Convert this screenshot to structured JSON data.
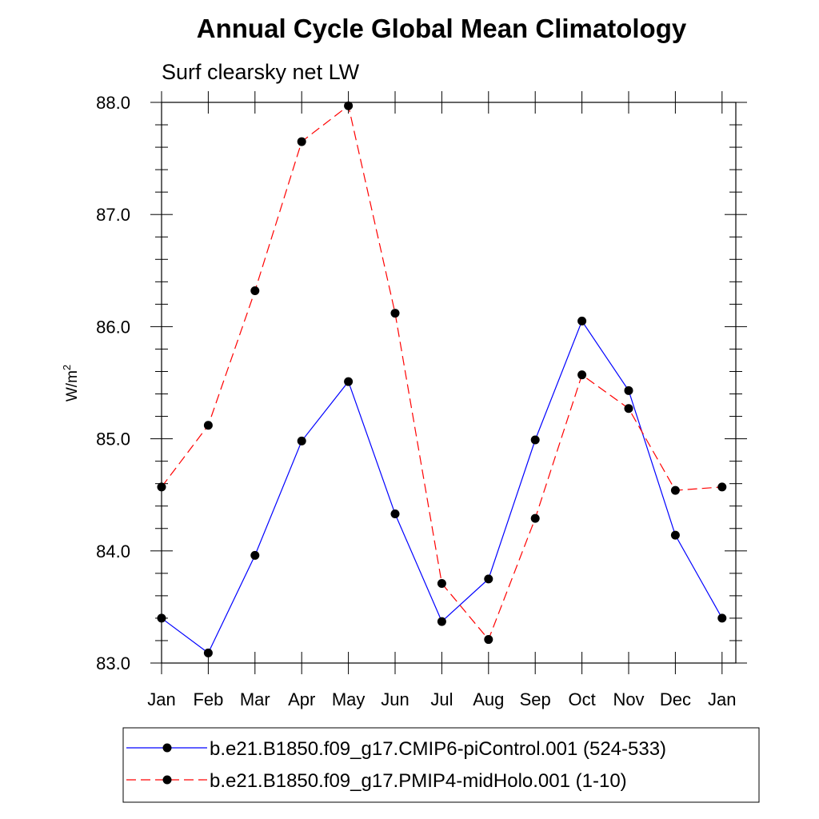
{
  "chart_data": {
    "type": "line",
    "title": "Annual Cycle Global Mean Climatology",
    "subtitle": "Surf clearsky net LW",
    "xlabel": "",
    "ylabel": "W/m",
    "ylabel_superscript": "2",
    "categories": [
      "Jan",
      "Feb",
      "Mar",
      "Apr",
      "May",
      "Jun",
      "Jul",
      "Aug",
      "Sep",
      "Oct",
      "Nov",
      "Dec",
      "Jan"
    ],
    "yticks": [
      "83.0",
      "84.0",
      "85.0",
      "86.0",
      "87.0",
      "88.0"
    ],
    "ylim": [
      83.0,
      88.0
    ],
    "grid": false,
    "legend_position": "bottom",
    "series": [
      {
        "name": "b.e21.B1850.f09_g17.CMIP6-piControl.001 (524-533)",
        "color": "#0000ff",
        "dash": "solid",
        "marker": "filled-circle",
        "values": [
          83.4,
          83.09,
          83.96,
          84.98,
          85.51,
          84.33,
          83.37,
          83.75,
          84.99,
          86.05,
          85.43,
          84.14,
          83.4
        ]
      },
      {
        "name": "b.e21.B1850.f09_g17.PMIP4-midHolo.001 (1-10)",
        "color": "#ff0000",
        "dash": "dashed",
        "marker": "filled-circle",
        "values": [
          84.57,
          85.12,
          86.32,
          87.65,
          87.97,
          86.12,
          83.71,
          83.21,
          84.29,
          85.57,
          85.27,
          84.54,
          84.57
        ]
      }
    ]
  }
}
